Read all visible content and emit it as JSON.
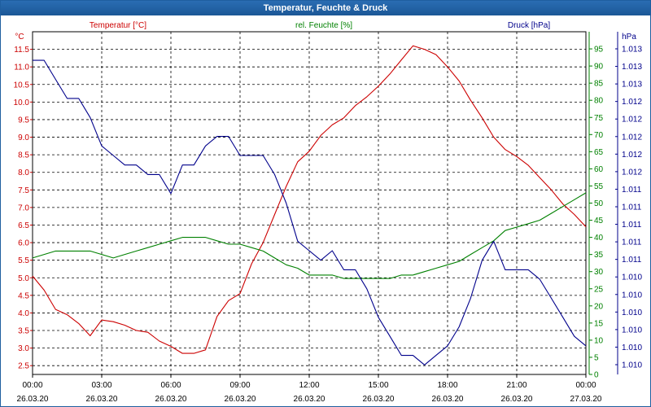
{
  "window": {
    "title": "Temperatur, Feuchte & Druck"
  },
  "colors": {
    "temperature": "#cc0000",
    "humidity": "#008000",
    "pressure": "#00008b",
    "titlebar": "#1f5fa0"
  },
  "chart_data": {
    "type": "line",
    "title": "Temperatur, Feuchte & Druck",
    "grid": true,
    "x_ticks": [
      {
        "time": "00:00",
        "date": "26.03.20",
        "hour": 0
      },
      {
        "time": "03:00",
        "date": "26.03.20",
        "hour": 3
      },
      {
        "time": "06:00",
        "date": "26.03.20",
        "hour": 6
      },
      {
        "time": "09:00",
        "date": "26.03.20",
        "hour": 9
      },
      {
        "time": "12:00",
        "date": "26.03.20",
        "hour": 12
      },
      {
        "time": "15:00",
        "date": "26.03.20",
        "hour": 15
      },
      {
        "time": "18:00",
        "date": "26.03.20",
        "hour": 18
      },
      {
        "time": "21:00",
        "date": "26.03.20",
        "hour": 21
      },
      {
        "time": "00:00",
        "date": "27.03.20",
        "hour": 24
      }
    ],
    "x_range_hours": [
      0,
      24
    ],
    "axes": {
      "temperature": {
        "label": "Temperatur [°C]",
        "unit": "°C",
        "ylim": [
          2.25,
          12.0
        ],
        "ticks": [
          "2.5",
          "3.0",
          "3.5",
          "4.0",
          "4.5",
          "5.0",
          "5.5",
          "6.0",
          "6.5",
          "7.0",
          "7.5",
          "8.0",
          "8.5",
          "9.0",
          "9.5",
          "10.0",
          "10.5",
          "11.0",
          "11.5"
        ],
        "tick_values": [
          2.5,
          3.0,
          3.5,
          4.0,
          4.5,
          5.0,
          5.5,
          6.0,
          6.5,
          7.0,
          7.5,
          8.0,
          8.5,
          9.0,
          9.5,
          10.0,
          10.5,
          11.0,
          11.5
        ]
      },
      "humidity": {
        "label": "rel. Feuchte [%]",
        "unit": "%",
        "ylim": [
          0,
          100
        ],
        "ticks": [
          "0",
          "5",
          "10",
          "15",
          "20",
          "25",
          "30",
          "35",
          "40",
          "45",
          "50",
          "55",
          "60",
          "65",
          "70",
          "75",
          "80",
          "85",
          "90",
          "95"
        ],
        "tick_values": [
          0,
          5,
          10,
          15,
          20,
          25,
          30,
          35,
          40,
          45,
          50,
          55,
          60,
          65,
          70,
          75,
          80,
          85,
          90,
          95
        ]
      },
      "pressure": {
        "label": "Druck [hPa]",
        "unit": "hPa",
        "ticks": [
          "1.010",
          "1.010",
          "1.010",
          "1.010",
          "1.010",
          "1.010",
          "1.011",
          "1.011",
          "1.011",
          "1.011",
          "1.011",
          "1.012",
          "1.012",
          "1.012",
          "1.012",
          "1.012",
          "1.013",
          "1.013",
          "1.013"
        ]
      }
    },
    "series": [
      {
        "name": "Temperatur [°C]",
        "axis": "temperature",
        "x": [
          0,
          0.5,
          1,
          1.5,
          2,
          2.5,
          3,
          3.5,
          4,
          4.5,
          5,
          5.5,
          6,
          6.5,
          7,
          7.5,
          8,
          8.5,
          9,
          9.5,
          10,
          10.5,
          11,
          11.5,
          12,
          12.5,
          13,
          13.5,
          14,
          14.5,
          15,
          15.5,
          16,
          16.5,
          17,
          17.5,
          18,
          18.5,
          19,
          19.5,
          20,
          20.5,
          21,
          21.5,
          22,
          22.5,
          23,
          23.5,
          24
        ],
        "values": [
          5.05,
          4.65,
          4.1,
          3.95,
          3.7,
          3.35,
          3.8,
          3.75,
          3.65,
          3.5,
          3.45,
          3.2,
          3.05,
          2.85,
          2.85,
          2.95,
          3.9,
          4.35,
          4.55,
          5.4,
          6.0,
          6.8,
          7.6,
          8.3,
          8.6,
          9.05,
          9.35,
          9.55,
          9.9,
          10.15,
          10.45,
          10.8,
          11.2,
          11.6,
          11.5,
          11.35,
          11.0,
          10.6,
          10.05,
          9.55,
          9.0,
          8.65,
          8.45,
          8.2,
          7.85,
          7.5,
          7.1,
          6.8,
          6.45
        ]
      },
      {
        "name": "rel. Feuchte [%]",
        "axis": "humidity",
        "x": [
          0,
          0.5,
          1,
          1.5,
          2,
          2.5,
          3,
          3.5,
          4,
          4.5,
          5,
          5.5,
          6,
          6.5,
          7,
          7.5,
          8,
          8.5,
          9,
          9.5,
          10,
          10.5,
          11,
          11.5,
          12,
          12.5,
          13,
          13.5,
          14,
          14.5,
          15,
          15.5,
          16,
          16.5,
          17,
          17.5,
          18,
          18.5,
          19,
          19.5,
          20,
          20.5,
          21,
          21.5,
          22,
          22.5,
          23,
          23.5,
          24
        ],
        "values": [
          34,
          35,
          36,
          36,
          36,
          36,
          35,
          34,
          35,
          36,
          37,
          38,
          39,
          40,
          40,
          40,
          39,
          38,
          38,
          37,
          36,
          34,
          32,
          31,
          29,
          29,
          29,
          28,
          28,
          28,
          28,
          28,
          29,
          29,
          30,
          31,
          32,
          33,
          35,
          37,
          39,
          42,
          43,
          44,
          45,
          47,
          49,
          51,
          53
        ]
      },
      {
        "name": "Druck [hPa]",
        "axis": "pressure",
        "x": [
          0,
          0.5,
          1,
          1.5,
          2,
          2.5,
          3,
          3.5,
          4,
          4.5,
          5,
          5.5,
          6,
          6.5,
          7,
          7.5,
          8,
          8.5,
          9,
          9.5,
          10,
          10.5,
          11,
          11.5,
          12,
          12.5,
          13,
          13.5,
          14,
          14.5,
          15,
          15.5,
          16,
          16.5,
          17,
          17.5,
          18,
          18.5,
          19,
          19.5,
          20,
          20.5,
          21,
          21.5,
          22,
          22.5,
          23,
          23.5,
          24
        ],
        "values": [
          1.0133,
          1.0133,
          1.0131,
          1.0129,
          1.0129,
          1.0127,
          1.0124,
          1.0123,
          1.0122,
          1.0122,
          1.0121,
          1.0121,
          1.0119,
          1.0122,
          1.0122,
          1.0124,
          1.0125,
          1.0125,
          1.0123,
          1.0123,
          1.0123,
          1.0121,
          1.0118,
          1.0114,
          1.0113,
          1.0112,
          1.0113,
          1.0111,
          1.0111,
          1.0109,
          1.0106,
          1.0104,
          1.0102,
          1.0102,
          1.0101,
          1.0102,
          1.0103,
          1.0105,
          1.0108,
          1.0112,
          1.0114,
          1.0111,
          1.0111,
          1.0111,
          1.011,
          1.0108,
          1.0106,
          1.0104,
          1.0103
        ]
      }
    ]
  }
}
